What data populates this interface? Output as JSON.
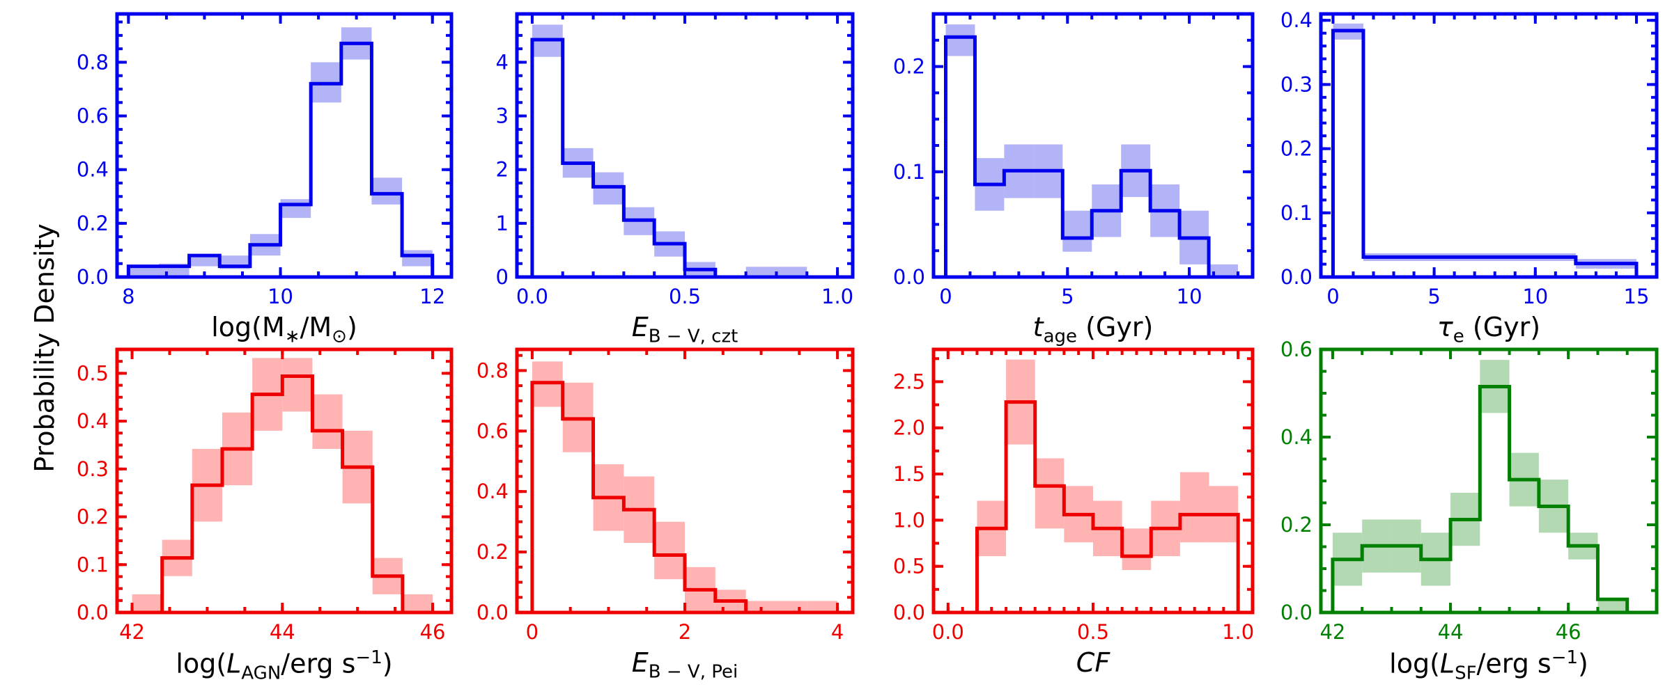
{
  "figure": {
    "ylabel": "Probability Density"
  },
  "chart_data": [
    {
      "type": "bar",
      "id": "p1",
      "color": "#0000ee",
      "fill": "#b3b3f7",
      "xlabel_html": "log(M<sub>∗</sub>/M<sub>⊙</sub>)",
      "xlim": [
        7.85,
        12.25
      ],
      "ylim": [
        0,
        0.98
      ],
      "xticks": [
        8,
        10,
        12
      ],
      "xtick_labels": [
        "8",
        "10",
        "12"
      ],
      "yticks": [
        0.0,
        0.2,
        0.4,
        0.6,
        0.8
      ],
      "ytick_labels": [
        "0.0",
        "0.2",
        "0.4",
        "0.6",
        "0.8"
      ],
      "xminor": 0.5,
      "yminor": 0.05,
      "edges": [
        8.0,
        8.4,
        8.8,
        9.2,
        9.6,
        10.0,
        10.4,
        10.8,
        11.2,
        11.6,
        12.0
      ],
      "values": [
        0.04,
        0.04,
        0.08,
        0.04,
        0.12,
        0.27,
        0.72,
        0.87,
        0.31,
        0.08
      ],
      "lower": [
        0.0,
        0.0,
        0.04,
        0.03,
        0.08,
        0.22,
        0.65,
        0.81,
        0.27,
        0.04
      ],
      "upper": [
        0.04,
        0.05,
        0.08,
        0.08,
        0.16,
        0.29,
        0.8,
        0.93,
        0.37,
        0.1
      ]
    },
    {
      "type": "bar",
      "id": "p2",
      "color": "#0000ee",
      "fill": "#b3b3f7",
      "xlabel_html": "<span class=\"it\">E</span><sub>B − V, czt</sub>",
      "xlim": [
        -0.05,
        1.05
      ],
      "ylim": [
        0,
        4.9
      ],
      "xticks": [
        0.0,
        0.5,
        1.0
      ],
      "xtick_labels": [
        "0.0",
        "0.5",
        "1.0"
      ],
      "yticks": [
        0,
        1,
        2,
        3,
        4
      ],
      "ytick_labels": [
        "0",
        "1",
        "2",
        "3",
        "4"
      ],
      "xminor": 0.1,
      "yminor": 0.25,
      "edges": [
        0.0,
        0.1,
        0.2,
        0.3,
        0.4,
        0.5,
        0.6,
        0.7,
        0.8,
        0.9
      ],
      "values": [
        4.42,
        2.12,
        1.68,
        1.06,
        0.62,
        0.14,
        0.0,
        0.0,
        0.0
      ],
      "lower": [
        4.1,
        1.85,
        1.35,
        0.78,
        0.38,
        0.0,
        0.0,
        0.0,
        0.0
      ],
      "upper": [
        4.7,
        2.4,
        1.95,
        1.3,
        0.85,
        0.28,
        0.0,
        0.19,
        0.19
      ]
    },
    {
      "type": "bar",
      "id": "p3",
      "color": "#0000ee",
      "fill": "#b3b3f7",
      "xlabel_html": "<span class=\"it\">t</span><sub>age</sub> (Gyr)",
      "xlim": [
        -0.5,
        12.6
      ],
      "ylim": [
        0,
        0.25
      ],
      "xticks": [
        0,
        5,
        10
      ],
      "xtick_labels": [
        "0",
        "5",
        "10"
      ],
      "yticks": [
        0.0,
        0.1,
        0.2
      ],
      "ytick_labels": [
        "0.0",
        "0.1",
        "0.2"
      ],
      "xminor": 1.0,
      "yminor": 0.025,
      "edges": [
        0.0,
        1.2,
        2.4,
        3.6,
        4.8,
        6.0,
        7.2,
        8.4,
        9.6,
        10.8,
        12.0
      ],
      "values": [
        0.228,
        0.088,
        0.101,
        0.101,
        0.037,
        0.063,
        0.101,
        0.063,
        0.037,
        0.0
      ],
      "lower": [
        0.21,
        0.063,
        0.075,
        0.075,
        0.024,
        0.038,
        0.076,
        0.038,
        0.012,
        0.0
      ],
      "upper": [
        0.24,
        0.113,
        0.126,
        0.126,
        0.063,
        0.088,
        0.126,
        0.088,
        0.063,
        0.012
      ]
    },
    {
      "type": "bar",
      "id": "p4",
      "color": "#0000ee",
      "fill": "#b3b3f7",
      "xlabel_html": "<span class=\"it\">τ<sub>e</sub></span> (Gyr)",
      "xlim": [
        -0.6,
        16.0
      ],
      "ylim": [
        0,
        0.41
      ],
      "xticks": [
        0,
        5,
        10,
        15
      ],
      "xtick_labels": [
        "0",
        "5",
        "10",
        "15"
      ],
      "yticks": [
        0.0,
        0.1,
        0.2,
        0.3,
        0.4
      ],
      "ytick_labels": [
        "0.0",
        "0.1",
        "0.2",
        "0.3",
        "0.4"
      ],
      "xminor": 1.0,
      "yminor": 0.02,
      "edges": [
        0.0,
        1.5,
        12.0,
        15.0
      ],
      "values": [
        0.384,
        0.031,
        0.021
      ],
      "lower": [
        0.37,
        0.025,
        0.013
      ],
      "upper": [
        0.395,
        0.037,
        0.028
      ]
    },
    {
      "type": "bar",
      "id": "p5",
      "color": "#ee0000",
      "fill": "#ffb3b3",
      "xlabel_html": "log(<span class=\"it\">L</span><sub>AGN</sub>/erg s<sup>−1</sup>)",
      "xlim": [
        41.8,
        46.25
      ],
      "ylim": [
        0,
        0.55
      ],
      "xticks": [
        42,
        44,
        46
      ],
      "xtick_labels": [
        "42",
        "44",
        "46"
      ],
      "yticks": [
        0.0,
        0.1,
        0.2,
        0.3,
        0.4,
        0.5
      ],
      "ytick_labels": [
        "0.0",
        "0.1",
        "0.2",
        "0.3",
        "0.4",
        "0.5"
      ],
      "xminor": 0.5,
      "yminor": 0.025,
      "edges": [
        42.0,
        42.4,
        42.8,
        43.2,
        43.6,
        44.0,
        44.4,
        44.8,
        45.2,
        45.6,
        46.0
      ],
      "values": [
        0.0,
        0.114,
        0.266,
        0.342,
        0.456,
        0.494,
        0.38,
        0.304,
        0.076,
        0.0
      ],
      "lower": [
        0.0,
        0.076,
        0.19,
        0.266,
        0.38,
        0.42,
        0.342,
        0.228,
        0.038,
        0.0
      ],
      "upper": [
        0.038,
        0.152,
        0.342,
        0.418,
        0.532,
        0.532,
        0.456,
        0.38,
        0.114,
        0.038
      ]
    },
    {
      "type": "bar",
      "id": "p6",
      "color": "#ee0000",
      "fill": "#ffb3b3",
      "xlabel_html": "<span class=\"it\">E</span><sub>B − V, Pei</sub>",
      "xlim": [
        -0.2,
        4.2
      ],
      "ylim": [
        0,
        0.87
      ],
      "xticks": [
        0,
        2,
        4
      ],
      "xtick_labels": [
        "0",
        "2",
        "4"
      ],
      "yticks": [
        0.0,
        0.2,
        0.4,
        0.6,
        0.8
      ],
      "ytick_labels": [
        "0.0",
        "0.2",
        "0.4",
        "0.6",
        "0.8"
      ],
      "xminor": 0.5,
      "yminor": 0.05,
      "edges": [
        0.0,
        0.4,
        0.8,
        1.2,
        1.6,
        2.0,
        2.4,
        2.8,
        3.2,
        3.6,
        4.0
      ],
      "values": [
        0.76,
        0.64,
        0.38,
        0.34,
        0.19,
        0.075,
        0.038,
        0.0,
        0.0,
        0.0
      ],
      "lower": [
        0.68,
        0.53,
        0.27,
        0.23,
        0.11,
        0.0,
        0.0,
        0.0,
        0.0,
        0.0
      ],
      "upper": [
        0.83,
        0.76,
        0.49,
        0.45,
        0.3,
        0.15,
        0.075,
        0.038,
        0.038,
        0.038
      ]
    },
    {
      "type": "bar",
      "id": "p7",
      "color": "#ee0000",
      "fill": "#ffb3b3",
      "xlabel_html": "<span class=\"it\">CF</span>",
      "xlim": [
        -0.05,
        1.05
      ],
      "ylim": [
        0,
        2.85
      ],
      "xticks": [
        0.0,
        0.5,
        1.0
      ],
      "xtick_labels": [
        "0.0",
        "0.5",
        "1.0"
      ],
      "yticks": [
        0.0,
        0.5,
        1.0,
        1.5,
        2.0,
        2.5
      ],
      "ytick_labels": [
        "0.0",
        "0.5",
        "1.0",
        "1.5",
        "2.0",
        "2.5"
      ],
      "xminor": 0.05,
      "yminor": 0.25,
      "edges": [
        0.1,
        0.2,
        0.3,
        0.4,
        0.5,
        0.6,
        0.7,
        0.8,
        0.9,
        1.0
      ],
      "values": [
        0.91,
        2.28,
        1.37,
        1.06,
        0.91,
        0.61,
        0.91,
        1.06,
        1.06
      ],
      "lower": [
        0.61,
        1.82,
        0.91,
        0.76,
        0.61,
        0.46,
        0.61,
        0.76,
        0.76
      ],
      "upper": [
        1.21,
        2.74,
        1.67,
        1.37,
        1.21,
        0.91,
        1.21,
        1.52,
        1.37
      ]
    },
    {
      "type": "bar",
      "id": "p8",
      "color": "#008000",
      "fill": "#b3d9b3",
      "xlabel_html": "log(<span class=\"it\">L</span><sub>SF</sub>/erg s<sup>−1</sup>)",
      "xlim": [
        41.8,
        47.5
      ],
      "ylim": [
        0,
        0.6
      ],
      "xticks": [
        42,
        44,
        46
      ],
      "xtick_labels": [
        "42",
        "44",
        "46"
      ],
      "yticks": [
        0.0,
        0.2,
        0.4,
        0.6
      ],
      "ytick_labels": [
        "0.0",
        "0.2",
        "0.4",
        "0.6"
      ],
      "xminor": 0.5,
      "yminor": 0.05,
      "edges": [
        42.0,
        42.5,
        43.0,
        43.5,
        44.0,
        44.5,
        45.0,
        45.5,
        46.0,
        46.5,
        47.0
      ],
      "values": [
        0.121,
        0.152,
        0.152,
        0.121,
        0.212,
        0.515,
        0.303,
        0.242,
        0.152,
        0.03
      ],
      "lower": [
        0.061,
        0.091,
        0.091,
        0.061,
        0.152,
        0.455,
        0.242,
        0.182,
        0.121,
        0.0
      ],
      "upper": [
        0.182,
        0.212,
        0.212,
        0.182,
        0.273,
        0.576,
        0.364,
        0.303,
        0.182,
        0.03
      ]
    }
  ]
}
